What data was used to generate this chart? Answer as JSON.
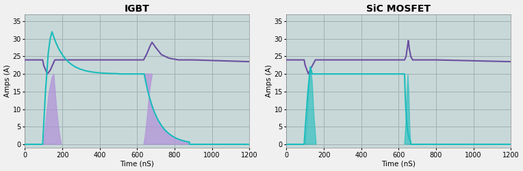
{
  "title_left": "IGBT",
  "title_right": "SiC MOSFET",
  "xlabel": "Time (nS)",
  "ylabel": "Amps (A)",
  "xlim": [
    0,
    1200
  ],
  "ylim": [
    -1,
    37
  ],
  "yticks": [
    0,
    5,
    10,
    15,
    20,
    25,
    30,
    35
  ],
  "xticks": [
    0,
    200,
    400,
    600,
    800,
    1000,
    1200
  ],
  "color_purple": "#6B4FA0",
  "color_cyan": "#1ABCBC",
  "color_fill_igbt": "#B090D8",
  "color_fill_sic": "#1ABCBC",
  "bg_color": "#C8D8D8",
  "grid_color": "#A0B0B0",
  "title_fontsize": 10,
  "axis_label_fontsize": 7.5,
  "tick_fontsize": 7
}
